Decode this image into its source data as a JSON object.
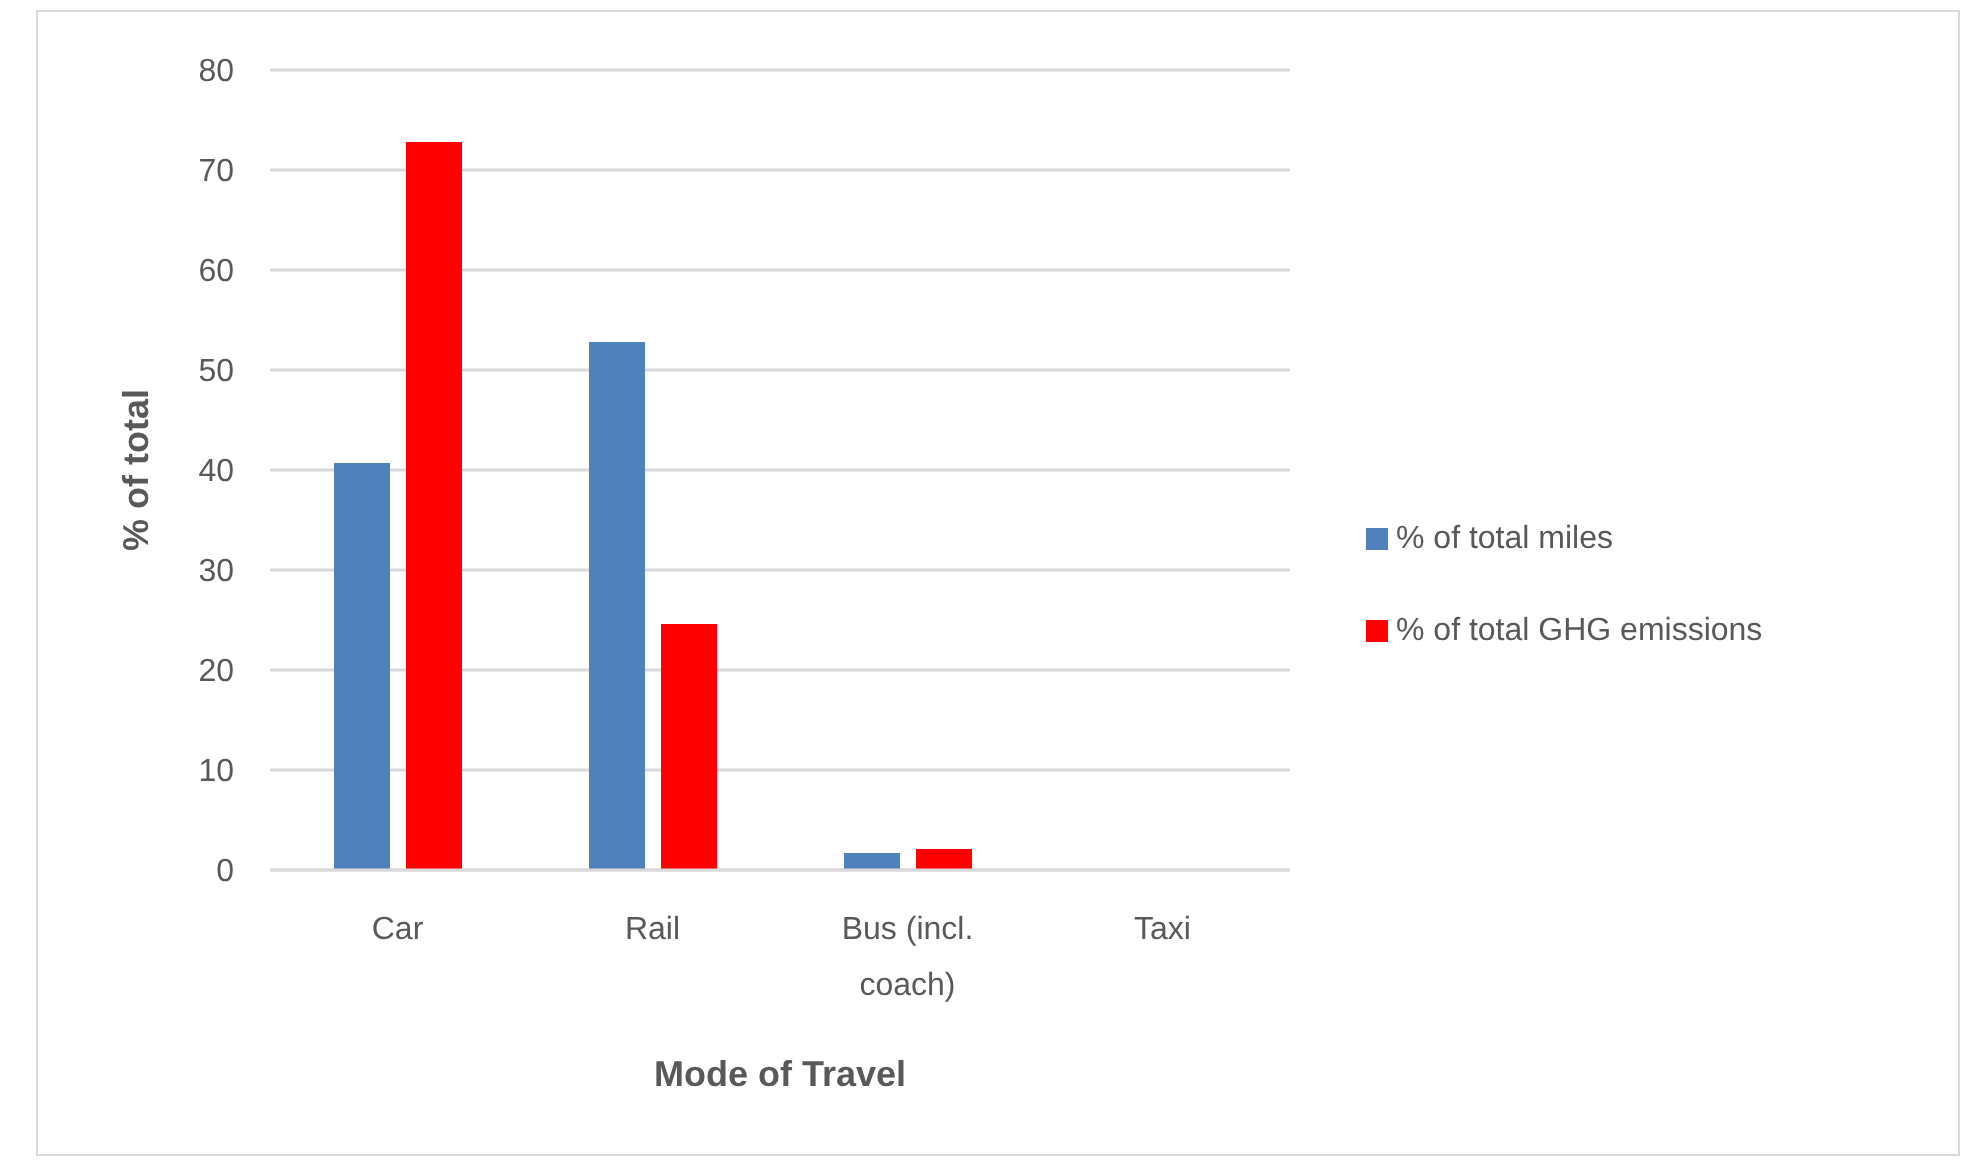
{
  "chart_data": {
    "type": "bar",
    "categories": [
      "Car",
      "Rail",
      "Bus (incl. coach)",
      "Taxi"
    ],
    "series": [
      {
        "name": "% of total miles",
        "color": "#4f81bd",
        "values": [
          40.7,
          52.8,
          1.7,
          0
        ]
      },
      {
        "name": "% of total GHG emissions",
        "color": "#ff0000",
        "values": [
          72.8,
          24.6,
          2.1,
          0
        ]
      }
    ],
    "xlabel": "Mode of Travel",
    "ylabel": "% of total",
    "ylim": [
      0,
      80
    ],
    "yticks": [
      0,
      10,
      20,
      30,
      40,
      50,
      60,
      70,
      80
    ],
    "grid": "y",
    "legend": "right"
  }
}
